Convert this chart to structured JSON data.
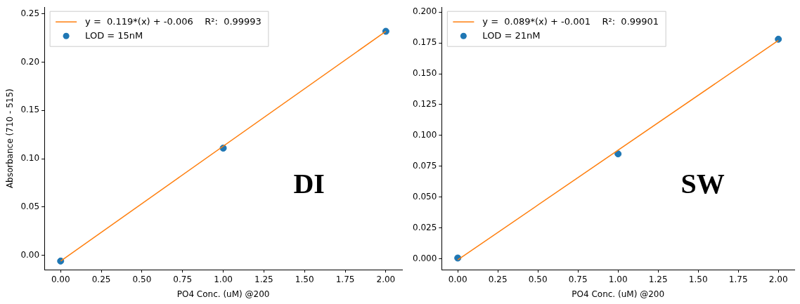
{
  "chart_data": [
    {
      "type": "scatter",
      "xlabel": "PO4 Conc. (uM) @200",
      "ylabel": "Absorbance (710 - 515)",
      "xlim": [
        -0.1,
        2.1
      ],
      "ylim": [
        -0.015,
        0.257
      ],
      "xticks": [
        {
          "value": 0,
          "label": "0.00"
        },
        {
          "value": 0.25,
          "label": "0.25"
        },
        {
          "value": 0.5,
          "label": "0.50"
        },
        {
          "value": 0.75,
          "label": "0.75"
        },
        {
          "value": 1,
          "label": "1.00"
        },
        {
          "value": 1.25,
          "label": "1.25"
        },
        {
          "value": 1.5,
          "label": "1.50"
        },
        {
          "value": 1.75,
          "label": "1.75"
        },
        {
          "value": 2,
          "label": "2.00"
        }
      ],
      "yticks": [
        {
          "value": 0,
          "label": "0.00"
        },
        {
          "value": 0.05,
          "label": "0.05"
        },
        {
          "value": 0.1,
          "label": "0.10"
        },
        {
          "value": 0.15,
          "label": "0.15"
        },
        {
          "value": 0.2,
          "label": "0.20"
        },
        {
          "value": 0.25,
          "label": "0.25"
        }
      ],
      "grid": false,
      "legend": "top left",
      "annotations": [
        "DI"
      ],
      "series": [
        {
          "name": "y =  0.119*(x) + -0.006    R²:  0.99993",
          "type": "line",
          "color": "#ff7f0e",
          "x": [
            0,
            2
          ],
          "values": [
            -0.006,
            0.232
          ]
        },
        {
          "name": "LOD = 15nM",
          "type": "scatter",
          "marker": "circle",
          "color": "#1f77b4",
          "x": [
            0,
            1,
            2
          ],
          "values": [
            -0.006,
            0.111,
            0.232
          ]
        }
      ]
    },
    {
      "type": "scatter",
      "xlabel": "PO4 Conc. (uM) @200",
      "xlim": [
        -0.1,
        2.1
      ],
      "ylim": [
        -0.009,
        0.204
      ],
      "xticks": [
        {
          "value": 0,
          "label": "0.00"
        },
        {
          "value": 0.25,
          "label": "0.25"
        },
        {
          "value": 0.5,
          "label": "0.50"
        },
        {
          "value": 0.75,
          "label": "0.75"
        },
        {
          "value": 1,
          "label": "1.00"
        },
        {
          "value": 1.25,
          "label": "1.25"
        },
        {
          "value": 1.5,
          "label": "1.50"
        },
        {
          "value": 1.75,
          "label": "1.75"
        },
        {
          "value": 2,
          "label": "2.00"
        }
      ],
      "yticks": [
        {
          "value": 0,
          "label": "0.000"
        },
        {
          "value": 0.025,
          "label": "0.025"
        },
        {
          "value": 0.05,
          "label": "0.050"
        },
        {
          "value": 0.075,
          "label": "0.075"
        },
        {
          "value": 0.1,
          "label": "0.100"
        },
        {
          "value": 0.125,
          "label": "0.125"
        },
        {
          "value": 0.15,
          "label": "0.150"
        },
        {
          "value": 0.175,
          "label": "0.175"
        },
        {
          "value": 0.2,
          "label": "0.200"
        }
      ],
      "grid": false,
      "legend": "top left",
      "annotations": [
        "SW"
      ],
      "series": [
        {
          "name": "y =  0.089*(x) + -0.001    R²:  0.99901",
          "type": "line",
          "color": "#ff7f0e",
          "x": [
            0,
            2
          ],
          "values": [
            -0.001,
            0.177
          ]
        },
        {
          "name": "LOD = 21nM",
          "type": "scatter",
          "marker": "circle",
          "color": "#1f77b4",
          "x": [
            0,
            1,
            2
          ],
          "values": [
            0.0005,
            0.085,
            0.178
          ]
        }
      ]
    }
  ]
}
